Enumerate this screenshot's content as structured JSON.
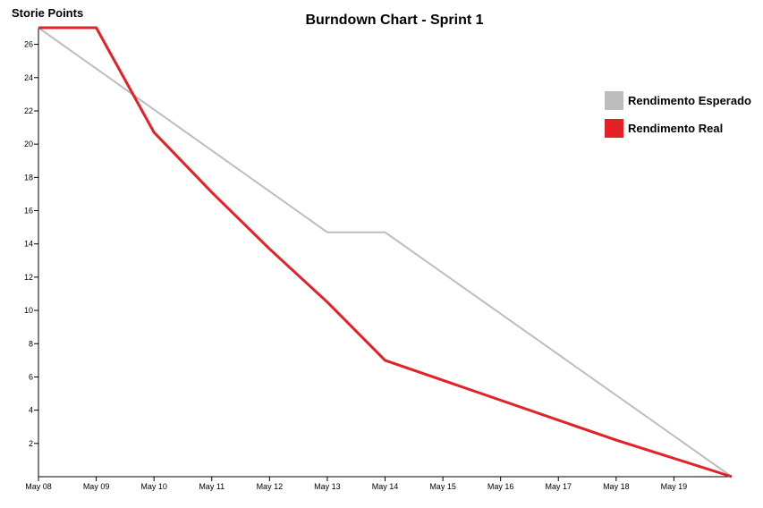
{
  "chart_data": {
    "type": "line",
    "title": "Burndown Chart - Sprint 1",
    "ylabel": "Storie Points",
    "xlabel": "",
    "x_tick_labels": [
      "May 08",
      "May 09",
      "May 10",
      "May 11",
      "May 12",
      "May 13",
      "May 14",
      "May 15",
      "May 16",
      "May 17",
      "May 18",
      "May 19"
    ],
    "y_ticks": [
      2,
      4,
      6,
      8,
      10,
      12,
      14,
      16,
      18,
      20,
      22,
      24,
      26
    ],
    "ylim": [
      0,
      27
    ],
    "xlim": [
      "2014-05-08",
      "2014-05-20"
    ],
    "grid": false,
    "legend_position": "top-right",
    "series": [
      {
        "name": "Rendimento Esperado",
        "color": "#bdbdbd",
        "points": [
          {
            "x": "2014-05-08",
            "y": 27
          },
          {
            "x": "2014-05-13",
            "y": 14.7
          },
          {
            "x": "2014-05-14",
            "y": 14.7
          },
          {
            "x": "2014-05-20",
            "y": 0
          }
        ]
      },
      {
        "name": "Rendimento Real",
        "color": "#e32127",
        "points": [
          {
            "x": "2014-05-08",
            "y": 27
          },
          {
            "x": "2014-05-09",
            "y": 27
          },
          {
            "x": "2014-05-10",
            "y": 20.7
          },
          {
            "x": "2014-05-11",
            "y": 17.1
          },
          {
            "x": "2014-05-12",
            "y": 13.7
          },
          {
            "x": "2014-05-13",
            "y": 10.5
          },
          {
            "x": "2014-05-14",
            "y": 7
          },
          {
            "x": "2014-05-15",
            "y": 5.8
          },
          {
            "x": "2014-05-16",
            "y": 4.6
          },
          {
            "x": "2014-05-17",
            "y": 3.4
          },
          {
            "x": "2014-05-18",
            "y": 2.2
          },
          {
            "x": "2014-05-19",
            "y": 1.1
          },
          {
            "x": "2014-05-20",
            "y": 0
          }
        ]
      }
    ]
  }
}
